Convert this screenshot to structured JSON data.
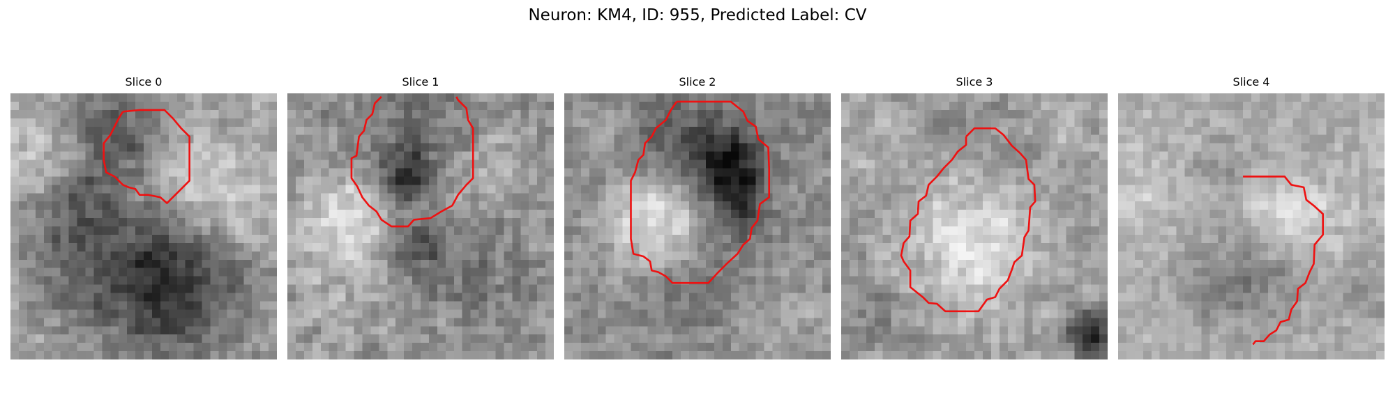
{
  "title": "Neuron: KM4, ID: 955, Predicted Label: CV",
  "colors": {
    "contour": "#ee1111",
    "background": "#ffffff"
  },
  "panels": [
    {
      "label": "Slice 0"
    },
    {
      "label": "Slice 1"
    },
    {
      "label": "Slice 2"
    },
    {
      "label": "Slice 3"
    },
    {
      "label": "Slice 4"
    }
  ]
}
